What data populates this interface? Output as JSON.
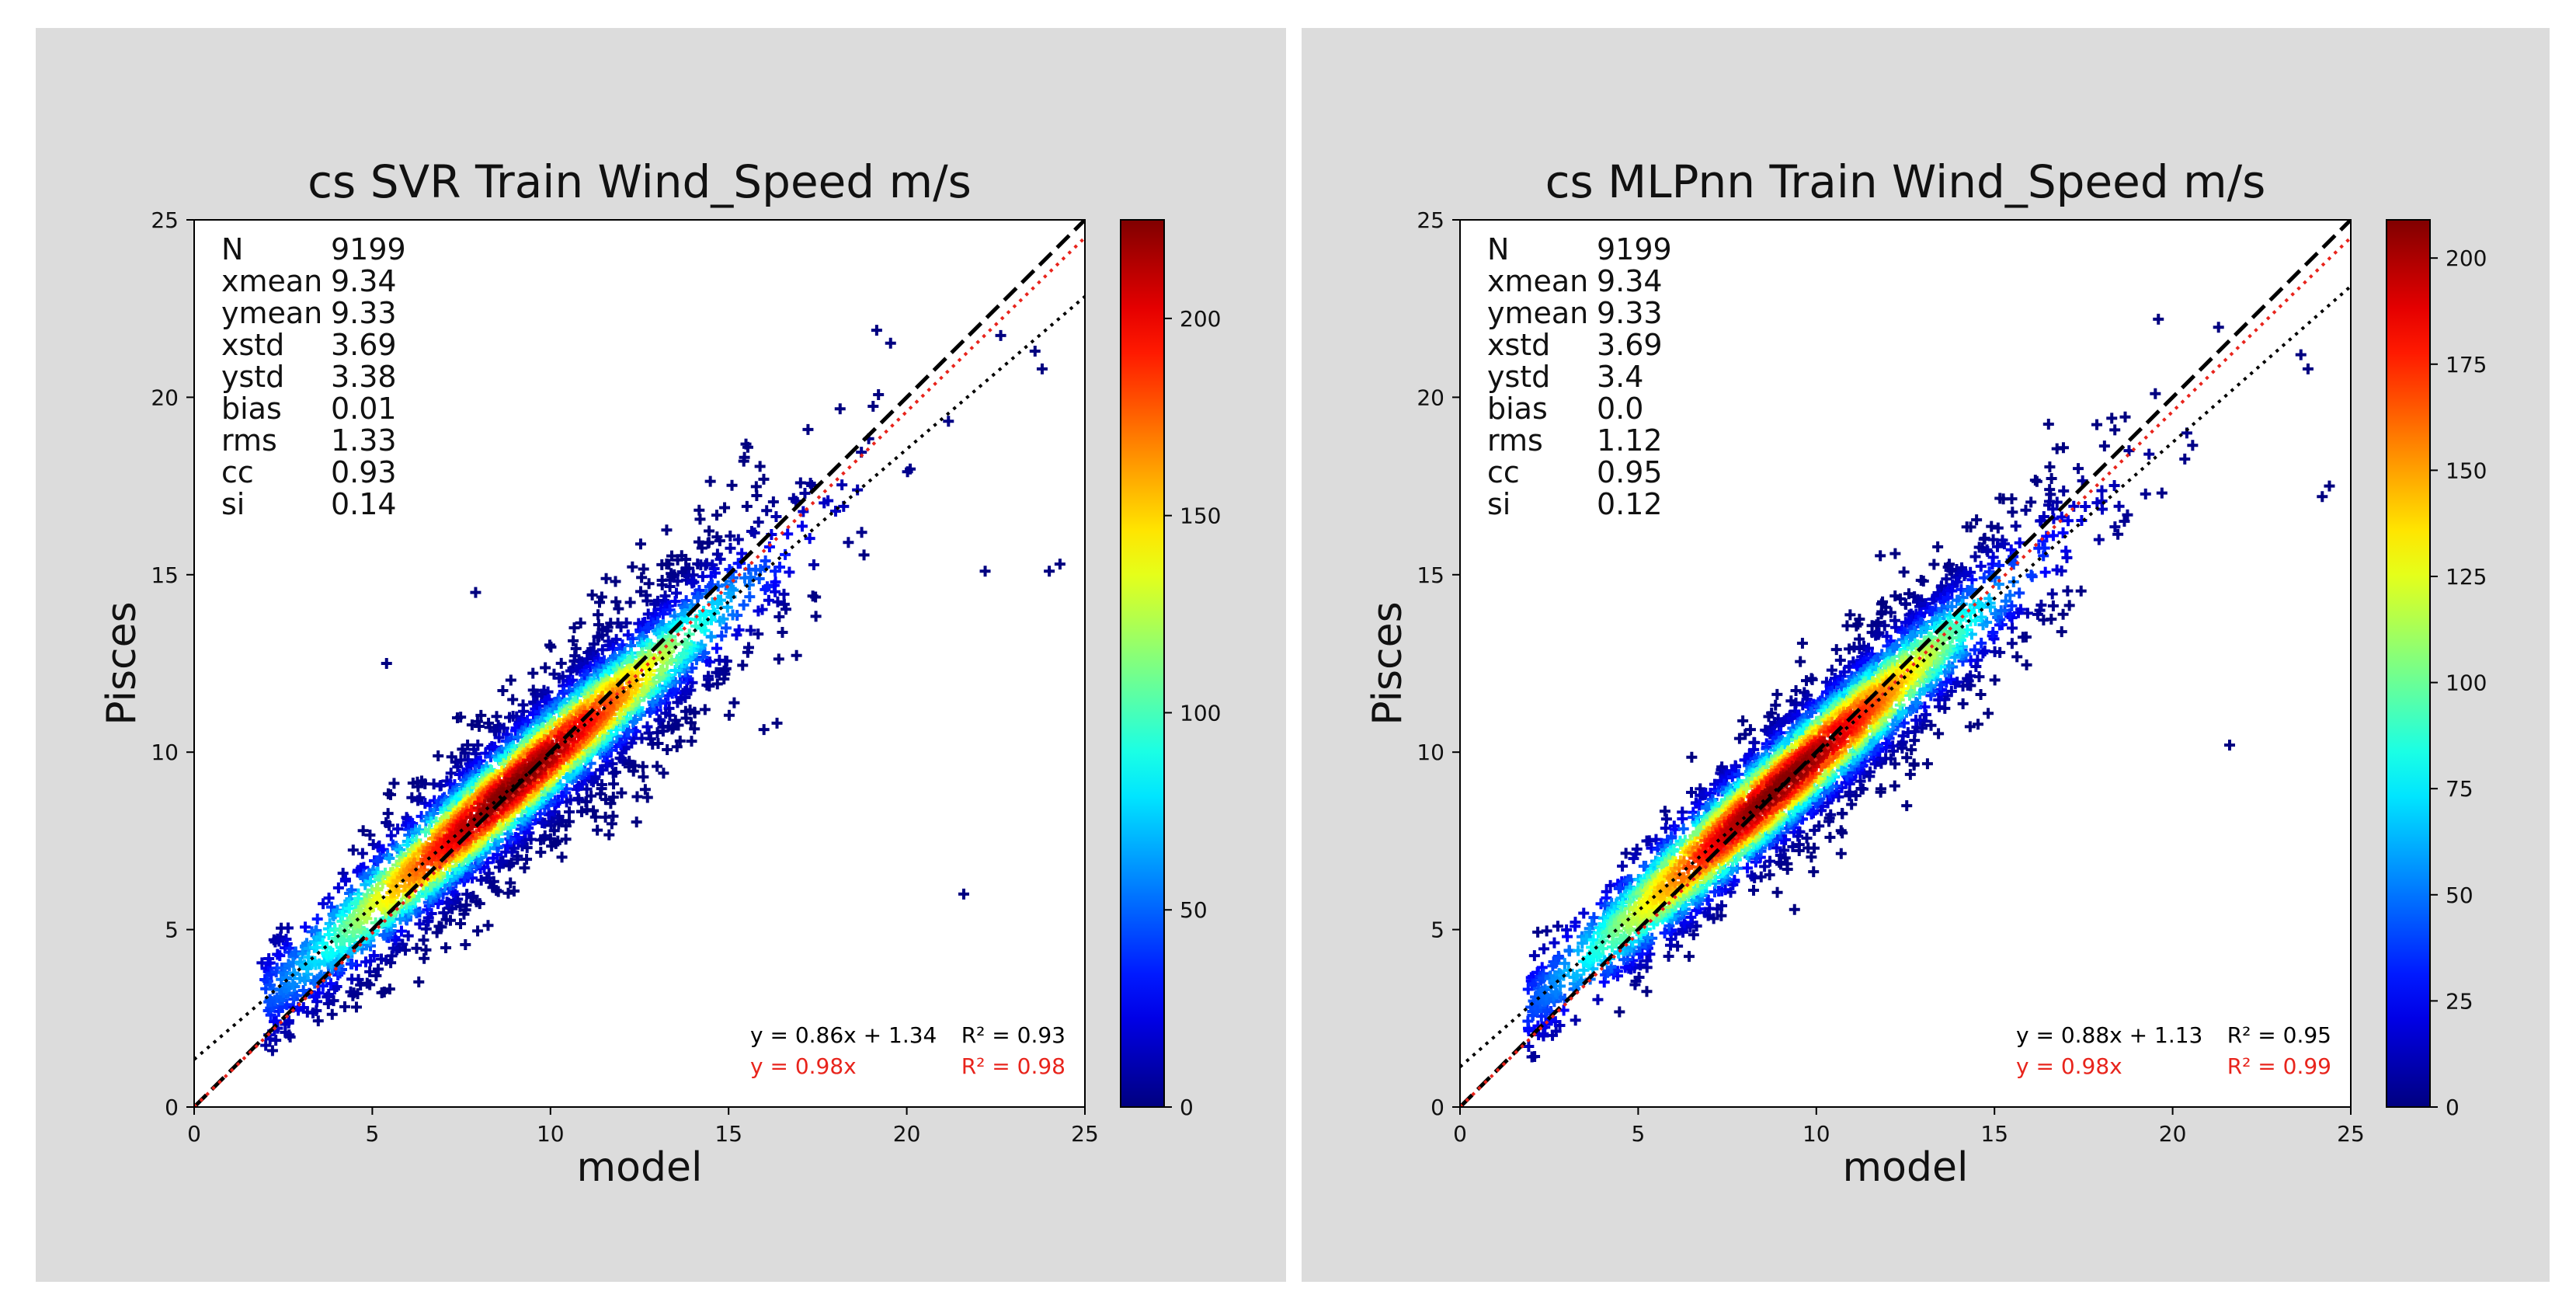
{
  "chart_data": [
    {
      "type": "scatter",
      "title": "cs SVR Train Wind_Speed m/s",
      "xlabel": "model",
      "ylabel": "Pisces",
      "xlim": [
        0,
        25
      ],
      "ylim": [
        0,
        25
      ],
      "xticks": [
        0,
        5,
        10,
        15,
        20,
        25
      ],
      "yticks": [
        0,
        5,
        10,
        15,
        20,
        25
      ],
      "stats": [
        {
          "name": "N",
          "value": "9199"
        },
        {
          "name": "xmean",
          "value": "9.34"
        },
        {
          "name": "ymean",
          "value": "9.33"
        },
        {
          "name": "xstd",
          "value": "3.69"
        },
        {
          "name": "ystd",
          "value": "3.38"
        },
        {
          "name": "bias",
          "value": "0.01"
        },
        {
          "name": "rms",
          "value": "1.33"
        },
        {
          "name": "cc",
          "value": "0.93"
        },
        {
          "name": "si",
          "value": "0.14"
        }
      ],
      "fit_line": {
        "slope": 0.86,
        "intercept": 1.34,
        "label": "y = 0.86x + 1.34",
        "r2_label": "R² = 0.93",
        "color": "#000000"
      },
      "fit_origin": {
        "slope": 0.98,
        "intercept": 0,
        "label": "y = 0.98x",
        "r2_label": "R² = 0.98",
        "color": "#e8241c"
      },
      "colorbar": {
        "min": 0,
        "max": 225,
        "ticks": [
          0,
          50,
          100,
          150,
          200
        ]
      }
    },
    {
      "type": "scatter",
      "title": "cs MLPnn Train Wind_Speed m/s",
      "xlabel": "model",
      "ylabel": "Pisces",
      "xlim": [
        0,
        25
      ],
      "ylim": [
        0,
        25
      ],
      "xticks": [
        0,
        5,
        10,
        15,
        20,
        25
      ],
      "yticks": [
        0,
        5,
        10,
        15,
        20,
        25
      ],
      "stats": [
        {
          "name": "N",
          "value": "9199"
        },
        {
          "name": "xmean",
          "value": "9.34"
        },
        {
          "name": "ymean",
          "value": "9.33"
        },
        {
          "name": "xstd",
          "value": "3.69"
        },
        {
          "name": "ystd",
          "value": "3.4"
        },
        {
          "name": "bias",
          "value": "0.0"
        },
        {
          "name": "rms",
          "value": "1.12"
        },
        {
          "name": "cc",
          "value": "0.95"
        },
        {
          "name": "si",
          "value": "0.12"
        }
      ],
      "fit_line": {
        "slope": 0.88,
        "intercept": 1.13,
        "label": "y = 0.88x + 1.13",
        "r2_label": "R² = 0.95",
        "color": "#000000"
      },
      "fit_origin": {
        "slope": 0.98,
        "intercept": 0,
        "label": "y = 0.98x",
        "r2_label": "R² = 0.99",
        "color": "#e8241c"
      },
      "colorbar": {
        "min": 0,
        "max": 209,
        "ticks": [
          0,
          25,
          50,
          75,
          100,
          125,
          150,
          175,
          200
        ]
      }
    }
  ]
}
